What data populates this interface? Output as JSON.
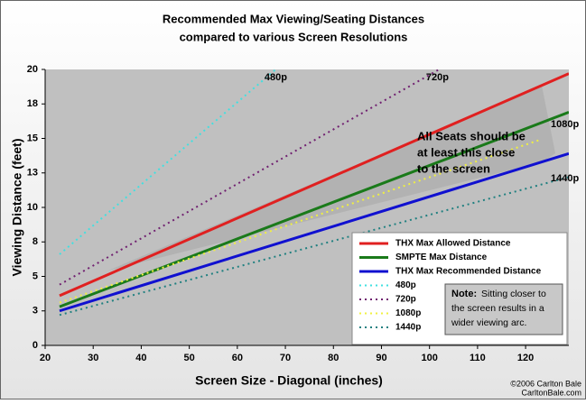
{
  "chart_data": {
    "type": "line",
    "title": [
      "Recommended Max Viewing/Seating Distances",
      "compared to various Screen Resolutions"
    ],
    "x_label": "Screen Size - Diagonal (inches)",
    "y_label": "Viewing Distance (feet)",
    "xlim": [
      20,
      129
    ],
    "xticks": [
      20,
      30,
      40,
      50,
      60,
      70,
      80,
      90,
      100,
      110,
      120
    ],
    "ylim": [
      0,
      20
    ],
    "yticks": [
      0,
      {
        "value": 2.5,
        "label": "3"
      },
      5,
      {
        "value": 7.5,
        "label": "8"
      },
      10,
      {
        "value": 12.5,
        "label": "13"
      },
      15,
      {
        "value": 17.5,
        "label": "18"
      },
      20
    ],
    "series": [
      {
        "name": "THX Max Allowed Distance",
        "color": "#e02020",
        "style": "solid",
        "x": [
          23,
          129
        ],
        "values": [
          3.6,
          19.7
        ]
      },
      {
        "name": "SMPTE Max Distance",
        "color": "#1a7a1a",
        "style": "solid",
        "x": [
          23,
          129
        ],
        "values": [
          2.8,
          16.9
        ]
      },
      {
        "name": "THX Max Recommended Distance",
        "color": "#1010d0",
        "style": "solid",
        "x": [
          23,
          129
        ],
        "values": [
          2.5,
          13.9
        ]
      },
      {
        "name": "480p",
        "color": "#40e0e0",
        "style": "dotted",
        "x": [
          23,
          68
        ],
        "values": [
          6.6,
          20
        ]
      },
      {
        "name": "720p",
        "color": "#702070",
        "style": "dotted",
        "x": [
          23,
          102
        ],
        "values": [
          4.4,
          20
        ]
      },
      {
        "name": "1080p",
        "color": "#f0f040",
        "style": "dotted",
        "x": [
          23,
          123
        ],
        "values": [
          3.1,
          14.9
        ]
      },
      {
        "name": "1440p",
        "color": "#208080",
        "style": "dotted",
        "x": [
          23,
          129
        ],
        "values": [
          2.2,
          12.2
        ]
      }
    ],
    "annotations": {
      "labels": [
        "480p",
        "720p",
        "1080p",
        "1440p"
      ],
      "seats": [
        "All Seats should be",
        "at least this close",
        "to the screen"
      ],
      "note_label": "Note:",
      "note": [
        "Sitting closer to",
        "the screen results in a",
        "wider viewing arc."
      ],
      "credit": [
        "©2006 Carlton Bale",
        "CarltonBale.com"
      ]
    }
  }
}
